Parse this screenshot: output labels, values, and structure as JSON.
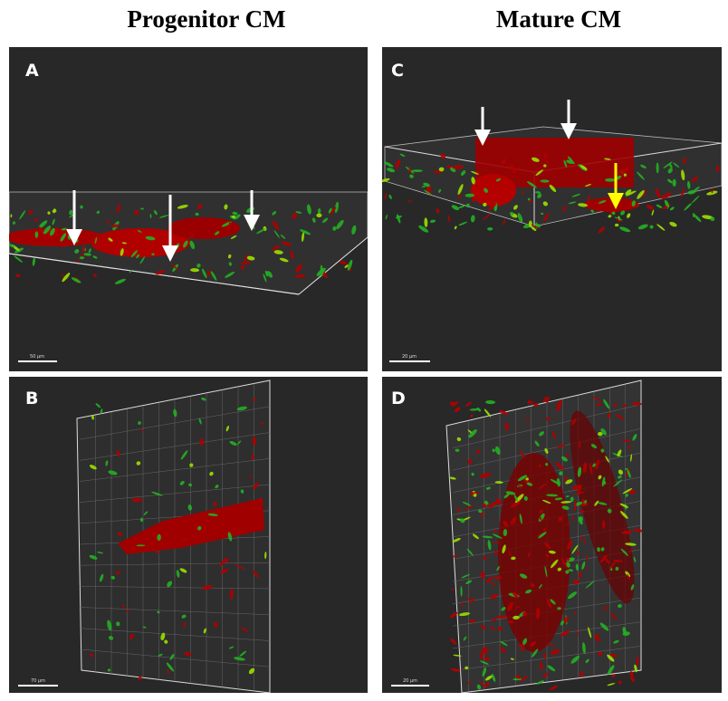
{
  "header": {
    "columns": [
      "Progenitor CM",
      "Mature CM"
    ]
  },
  "panels": [
    {
      "label": "A",
      "scale_bar": "50 µm"
    },
    {
      "label": "B",
      "scale_bar": "70 µm"
    },
    {
      "label": "C",
      "scale_bar": "20 µm"
    },
    {
      "label": "D",
      "scale_bar": "20 µm"
    }
  ]
}
